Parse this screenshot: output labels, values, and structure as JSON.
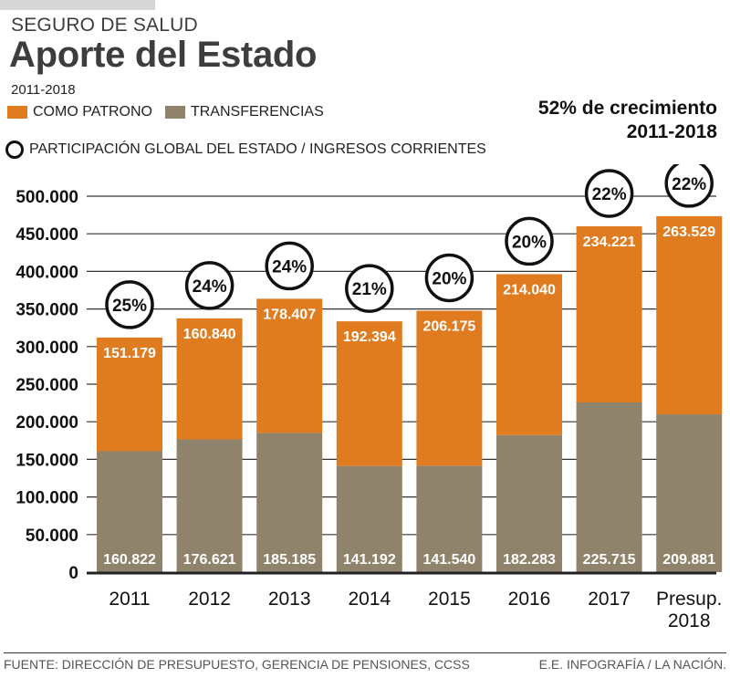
{
  "header": {
    "kicker": "SEGURO DE SALUD",
    "title": "Aporte del Estado",
    "period": "2011-2018",
    "growth_line1": "52% de crecimiento",
    "growth_line2": "2011-2018"
  },
  "legend": {
    "items": [
      {
        "label": "COMO PATRONO",
        "color": "#e07b20"
      },
      {
        "label": "TRANSFERENCIAS",
        "color": "#8f836b"
      }
    ],
    "ring_label": "PARTICIPACIÓN GLOBAL DEL ESTADO / INGRESOS CORRIENTES"
  },
  "footer": {
    "source": "FUENTE: DIRECCIÓN DE PRESUPUESTO, GERENCIA DE PENSIONES, CCSS",
    "credit": "E.E. INFOGRAFÍA / LA NACIÓN."
  },
  "chart_data": {
    "type": "bar",
    "stacked": true,
    "title": "Aporte del Estado",
    "subtitle": "2011-2018",
    "xlabel": "",
    "ylabel": "",
    "ylim": [
      0,
      500000
    ],
    "yticks": [
      0,
      50000,
      100000,
      150000,
      200000,
      250000,
      300000,
      350000,
      400000,
      450000,
      500000
    ],
    "ytick_labels": [
      "0",
      "50.000",
      "100.000",
      "150.000",
      "200.000",
      "250.000",
      "300.000",
      "350.000",
      "400.000",
      "450.000",
      "500.000"
    ],
    "grid": true,
    "legend_position": "top-left",
    "categories": [
      "2011",
      "2012",
      "2013",
      "2014",
      "2015",
      "2016",
      "2017",
      "Presup. 2018"
    ],
    "series": [
      {
        "name": "TRANSFERENCIAS",
        "color": "#8f836b",
        "values": [
          160822,
          176621,
          185185,
          141192,
          141540,
          182283,
          225715,
          209881
        ],
        "labels": [
          "160.822",
          "176.621",
          "185.185",
          "141.192",
          "141.540",
          "182.283",
          "225.715",
          "209.881"
        ]
      },
      {
        "name": "COMO PATRONO",
        "color": "#e07b20",
        "values": [
          151179,
          160840,
          178407,
          192394,
          206175,
          214040,
          234221,
          263529
        ],
        "labels": [
          "151.179",
          "160.840",
          "178.407",
          "192.394",
          "206.175",
          "214.040",
          "234.221",
          "263.529"
        ]
      }
    ],
    "annotations": {
      "name": "PARTICIPACIÓN GLOBAL DEL ESTADO / INGRESOS CORRIENTES",
      "values": [
        "25%",
        "24%",
        "24%",
        "21%",
        "20%",
        "20%",
        "22%",
        "22%"
      ]
    }
  }
}
